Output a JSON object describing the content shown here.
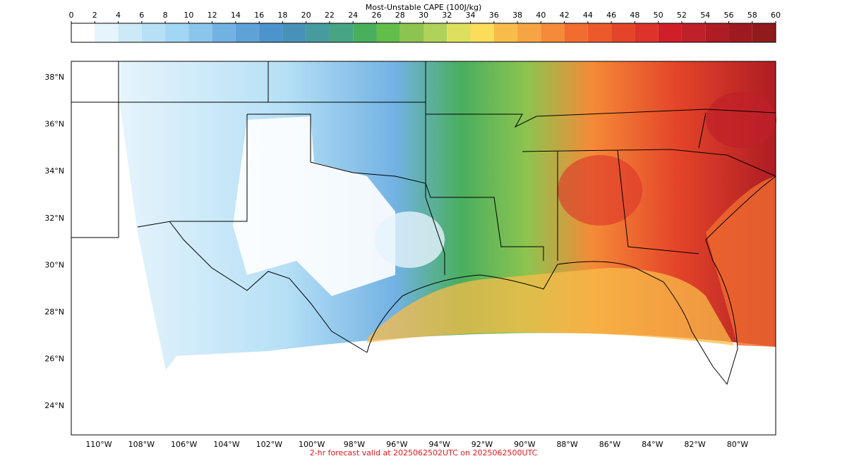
{
  "colorbar": {
    "title": "Most-Unstable CAPE (100J/kg)",
    "ticks": [
      0,
      2,
      4,
      6,
      8,
      10,
      12,
      14,
      16,
      18,
      20,
      22,
      24,
      26,
      28,
      30,
      32,
      34,
      36,
      38,
      40,
      42,
      44,
      46,
      48,
      50,
      52,
      54,
      56,
      58,
      60
    ],
    "colors": [
      "#ffffff",
      "#e6f4fc",
      "#cde8f7",
      "#b6e0f6",
      "#a2d6f5",
      "#8ac5ec",
      "#72b2e3",
      "#5ea2d8",
      "#4c94cc",
      "#4891b8",
      "#479b9e",
      "#47a484",
      "#49ae5e",
      "#63bd4a",
      "#8cc44f",
      "#b0d15a",
      "#dde05d",
      "#fbdd5a",
      "#f8bc4a",
      "#f6a444",
      "#f58a38",
      "#f06d2f",
      "#ec5a2b",
      "#e44429",
      "#dc342a",
      "#d01f28",
      "#c0202a",
      "#ae1c24",
      "#9e1a20",
      "#901b1d"
    ]
  },
  "map": {
    "lat_labels": [
      "38°N",
      "36°N",
      "34°N",
      "32°N",
      "30°N",
      "28°N",
      "26°N",
      "24°N"
    ],
    "lon_labels": [
      "110°W",
      "108°W",
      "106°W",
      "104°W",
      "102°W",
      "100°W",
      "98°W",
      "96°W",
      "94°W",
      "92°W",
      "90°W",
      "88°W",
      "86°W",
      "84°W",
      "82°W",
      "80°W"
    ]
  },
  "footer": "2-hr forecast valid at 2025062502UTC on 2025062500UTC"
}
